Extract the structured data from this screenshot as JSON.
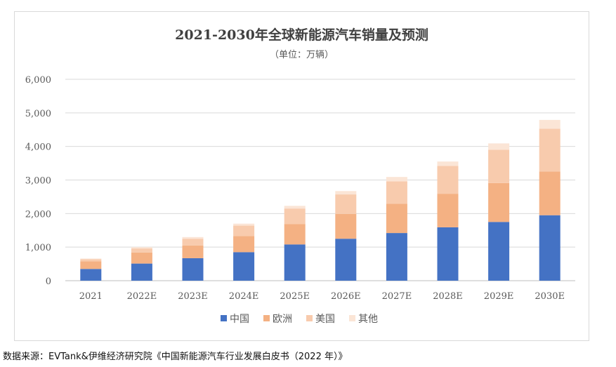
{
  "chart_data": {
    "type": "bar",
    "stacked": true,
    "title": "2021-2030年全球新能源汽车销量及预测",
    "subtitle": "（单位：万辆）",
    "categories": [
      "2021",
      "2022E",
      "2023E",
      "2024E",
      "2025E",
      "2026E",
      "2027E",
      "2028E",
      "2029E",
      "2030E"
    ],
    "series": [
      {
        "name": "中国",
        "color": "#4472c4",
        "values": [
          350,
          510,
          670,
          850,
          1080,
          1250,
          1420,
          1590,
          1750,
          1950
        ]
      },
      {
        "name": "欧洲",
        "color": "#f4b183",
        "values": [
          230,
          330,
          380,
          480,
          610,
          740,
          870,
          1000,
          1160,
          1300
        ]
      },
      {
        "name": "美国",
        "color": "#f8cbad",
        "values": [
          60,
          120,
          200,
          310,
          460,
          580,
          670,
          830,
          990,
          1280
        ]
      },
      {
        "name": "其他",
        "color": "#fbe5d6",
        "values": [
          20,
          40,
          50,
          60,
          80,
          100,
          130,
          130,
          190,
          260
        ]
      }
    ],
    "ylim": [
      0,
      6000
    ],
    "yticks": [
      0,
      1000,
      2000,
      3000,
      4000,
      5000,
      6000
    ],
    "ytick_labels": [
      "0",
      "1,000",
      "2,000",
      "3,000",
      "4,000",
      "5,000",
      "6,000"
    ],
    "grid": true,
    "legend_position": "bottom"
  },
  "source_note": "数据来源：EVTank&伊维经济研究院《中国新能源汽车行业发展白皮书（2022 年）》"
}
